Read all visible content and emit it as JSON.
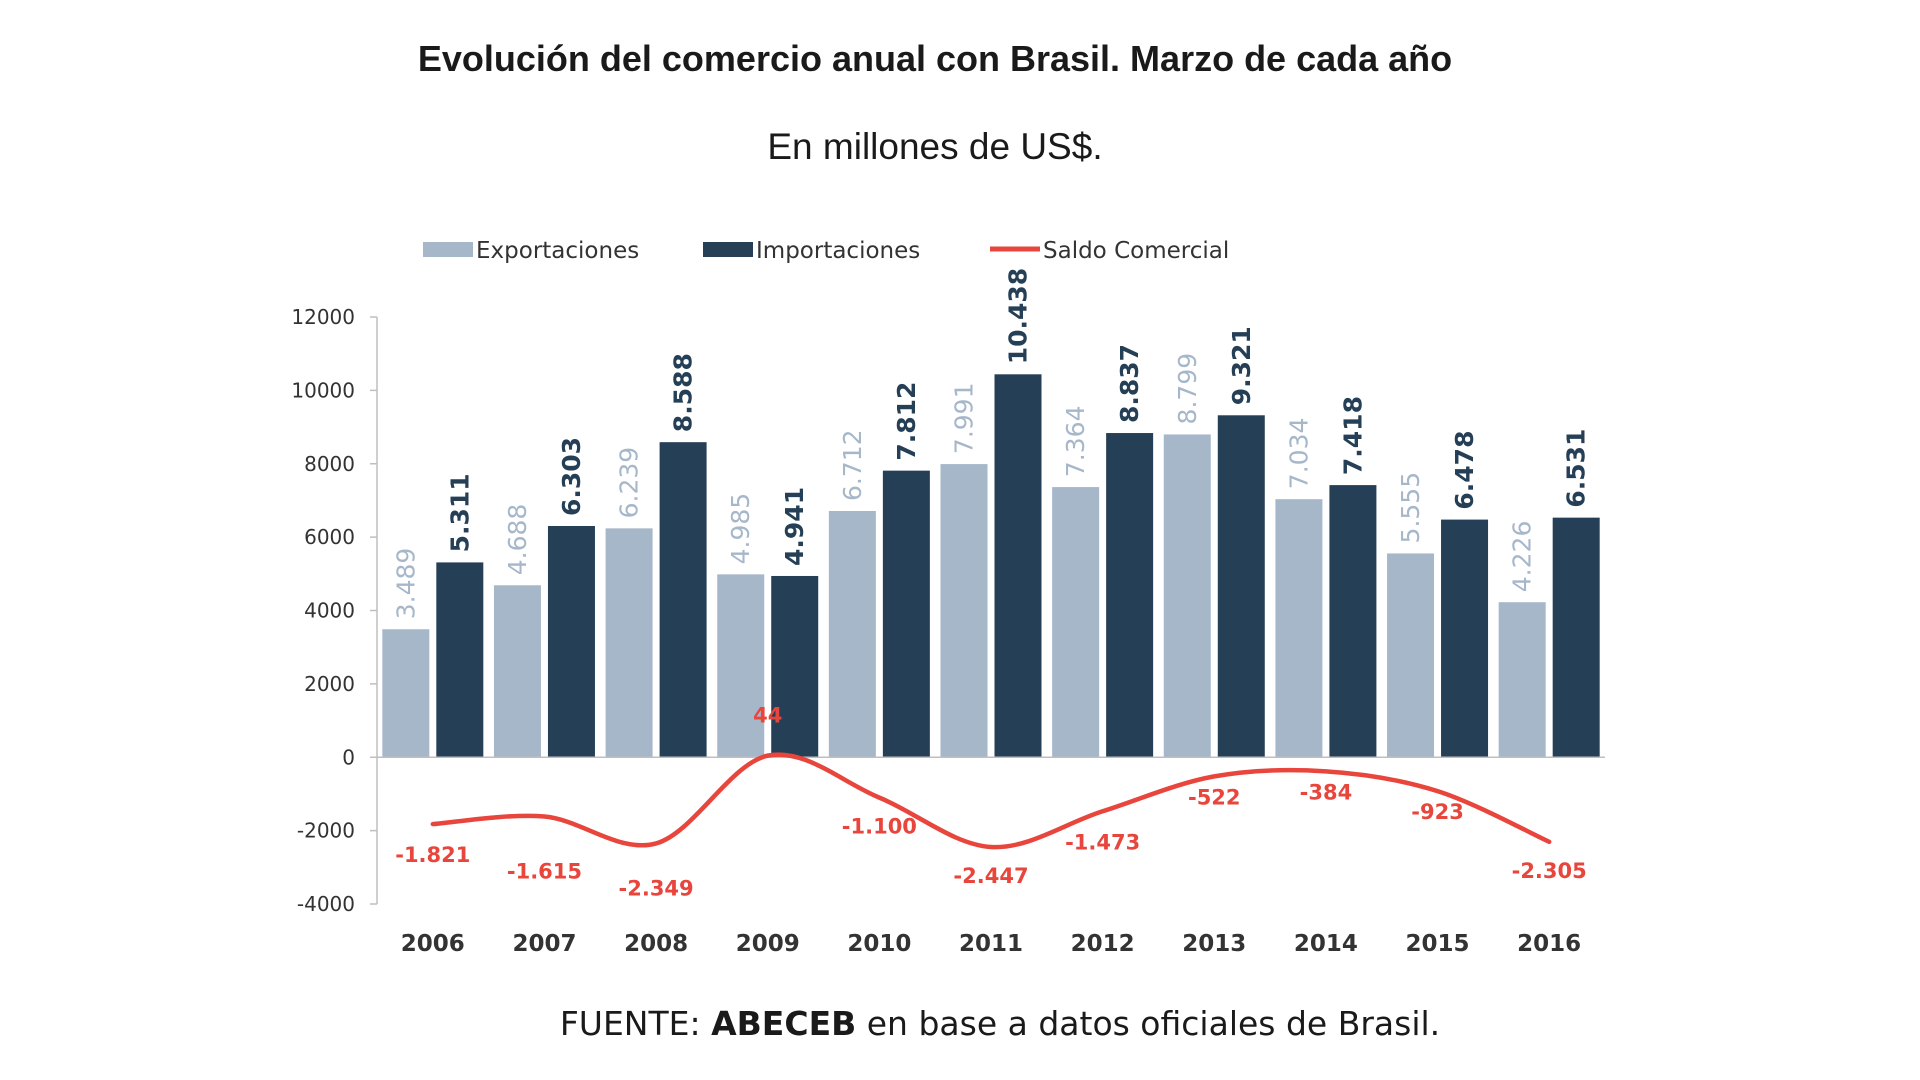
{
  "header": {
    "title": "Evolución del comercio anual con Brasil. Marzo de cada año",
    "subtitle": "En millones de US$."
  },
  "footer": {
    "prefix": "FUENTE: ",
    "brand": "ABECEB",
    "suffix": " en base a datos oficiales de Brasil."
  },
  "colors": {
    "exports": "#a6b7ca",
    "imports": "#253f56",
    "balance": "#e8453c",
    "axis": "#bfbfbf"
  },
  "chart_data": {
    "type": "bar",
    "title": "Evolución del comercio anual con Brasil. Marzo de cada año",
    "subtitle": "En millones de US$.",
    "xlabel": "",
    "ylabel": "",
    "categories": [
      "2006",
      "2007",
      "2008",
      "2009",
      "2010",
      "2011",
      "2012",
      "2013",
      "2014",
      "2015",
      "2016"
    ],
    "ylim": [
      -4000,
      12000
    ],
    "yticks": [
      12000,
      10000,
      8000,
      6000,
      4000,
      2000,
      0,
      -2000,
      -4000
    ],
    "ytick_labels": [
      "12000",
      "10000",
      "8000",
      "6000",
      "4000",
      "2000",
      "0",
      "-2000",
      "-4000"
    ],
    "legend_position": "top",
    "grid": false,
    "series": [
      {
        "name": "Exportaciones",
        "kind": "bar",
        "values": [
          3489,
          4688,
          6239,
          4985,
          6712,
          7991,
          7364,
          8799,
          7034,
          5555,
          4226
        ],
        "labels": [
          "3.489",
          "4.688",
          "6.239",
          "4.985",
          "6.712",
          "7.991",
          "7.364",
          "8.799",
          "7.034",
          "5.555",
          "4.226"
        ]
      },
      {
        "name": "Importaciones",
        "kind": "bar",
        "values": [
          5311,
          6303,
          8588,
          4941,
          7812,
          10438,
          8837,
          9321,
          7418,
          6478,
          6531
        ],
        "labels": [
          "5.311",
          "6.303",
          "8.588",
          "4.941",
          "7.812",
          "10.438",
          "8.837",
          "9.321",
          "7.418",
          "6.478",
          "6.531"
        ]
      },
      {
        "name": "Saldo Comercial",
        "kind": "line",
        "values": [
          -1821,
          -1615,
          -2349,
          44,
          -1100,
          -2447,
          -1473,
          -522,
          -384,
          -923,
          -2305
        ],
        "labels": [
          "-1.821",
          "-1.615",
          "-2.349",
          "44",
          "-1.100",
          "-2.447",
          "-1.473",
          "-522",
          "-384",
          "-923",
          "-2.305"
        ]
      }
    ]
  }
}
